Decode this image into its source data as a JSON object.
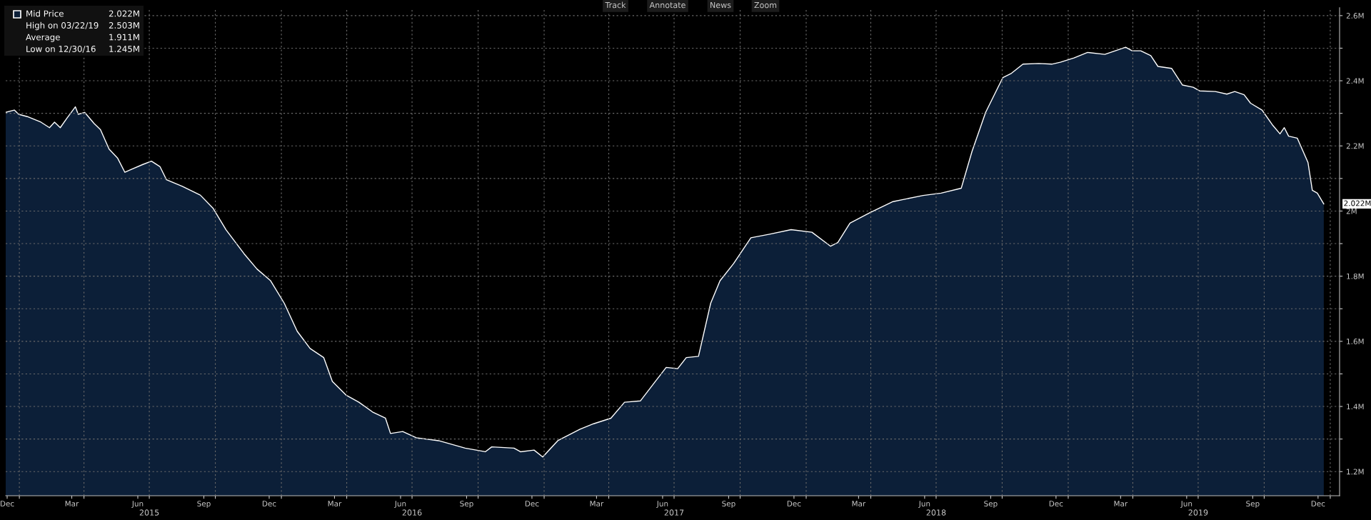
{
  "chart_data": {
    "type": "area",
    "x": [
      "2014-12-13",
      "2014-12-25",
      "2014-12-31",
      "2015-01-12",
      "2015-01-31",
      "2015-02-12",
      "2015-02-19",
      "2015-02-27",
      "2015-03-08",
      "2015-03-20",
      "2015-03-24",
      "2015-04-02",
      "2015-04-15",
      "2015-04-24",
      "2015-05-06",
      "2015-05-18",
      "2015-05-28",
      "2015-06-06",
      "2015-06-22",
      "2015-07-04",
      "2015-07-16",
      "2015-07-25",
      "2015-08-16",
      "2015-09-10",
      "2015-09-28",
      "2015-10-16",
      "2015-11-10",
      "2015-11-28",
      "2015-12-17",
      "2016-01-05",
      "2016-01-23",
      "2016-02-10",
      "2016-02-29",
      "2016-03-12",
      "2016-03-31",
      "2016-04-18",
      "2016-05-07",
      "2016-05-25",
      "2016-06-01",
      "2016-06-18",
      "2016-07-07",
      "2016-08-07",
      "2016-09-13",
      "2016-10-11",
      "2016-10-20",
      "2016-11-20",
      "2016-11-29",
      "2016-12-18",
      "2016-12-30",
      "2017-01-20",
      "2017-02-20",
      "2017-03-11",
      "2017-04-04",
      "2017-04-23",
      "2017-05-15",
      "2017-06-05",
      "2017-06-20",
      "2017-07-06",
      "2017-07-18",
      "2017-08-04",
      "2017-08-21",
      "2017-09-03",
      "2017-09-22",
      "2017-10-16",
      "2017-11-11",
      "2017-12-11",
      "2018-01-09",
      "2018-02-04",
      "2018-02-14",
      "2018-03-03",
      "2018-03-31",
      "2018-05-02",
      "2018-06-13",
      "2018-07-08",
      "2018-08-05",
      "2018-08-20",
      "2018-09-08",
      "2018-09-23",
      "2018-10-02",
      "2018-10-14",
      "2018-10-30",
      "2018-11-21",
      "2018-12-09",
      "2018-12-21",
      "2019-01-09",
      "2019-01-28",
      "2019-02-21",
      "2019-03-22",
      "2019-03-31",
      "2019-04-12",
      "2019-04-26",
      "2019-05-06",
      "2019-05-25",
      "2019-06-09",
      "2019-06-24",
      "2019-07-03",
      "2019-07-25",
      "2019-08-10",
      "2019-08-21",
      "2019-09-03",
      "2019-09-12",
      "2019-09-28",
      "2019-10-13",
      "2019-10-23",
      "2019-10-29",
      "2019-11-04",
      "2019-11-16",
      "2019-12-01",
      "2019-12-07",
      "2019-12-14",
      "2019-12-23"
    ],
    "series": [
      {
        "name": "Mid Price",
        "color": "#0c1f38",
        "values": [
          2.303,
          2.31,
          2.297,
          2.29,
          2.273,
          2.256,
          2.273,
          2.256,
          2.284,
          2.32,
          2.297,
          2.303,
          2.269,
          2.25,
          2.19,
          2.162,
          2.119,
          2.128,
          2.143,
          2.153,
          2.136,
          2.096,
          2.076,
          2.049,
          2.008,
          1.942,
          1.869,
          1.822,
          1.786,
          1.717,
          1.631,
          1.578,
          1.55,
          1.477,
          1.435,
          1.413,
          1.383,
          1.364,
          1.317,
          1.323,
          1.304,
          1.295,
          1.272,
          1.261,
          1.276,
          1.272,
          1.261,
          1.266,
          1.245,
          1.295,
          1.33,
          1.347,
          1.364,
          1.413,
          1.417,
          1.477,
          1.52,
          1.516,
          1.55,
          1.554,
          1.717,
          1.786,
          1.839,
          1.918,
          1.929,
          1.943,
          1.935,
          1.892,
          1.903,
          1.963,
          1.995,
          2.029,
          2.048,
          2.055,
          2.07,
          2.183,
          2.303,
          2.37,
          2.41,
          2.423,
          2.451,
          2.453,
          2.451,
          2.457,
          2.47,
          2.487,
          2.481,
          2.503,
          2.492,
          2.492,
          2.477,
          2.444,
          2.438,
          2.387,
          2.38,
          2.369,
          2.367,
          2.359,
          2.367,
          2.357,
          2.331,
          2.31,
          2.263,
          2.237,
          2.256,
          2.23,
          2.224,
          2.149,
          2.064,
          2.055,
          2.022
        ]
      }
    ],
    "xlim": [
      "2014-12-13",
      "2020-01-14"
    ],
    "xticks": [
      {
        "value": "2014-12-15",
        "label": "Dec"
      },
      {
        "value": "2015-03-15",
        "label": "Mar"
      },
      {
        "value": "2015-06-15",
        "label": "Jun"
      },
      {
        "value": "2015-09-15",
        "label": "Sep"
      },
      {
        "value": "2015-12-15",
        "label": "Dec"
      },
      {
        "value": "2016-03-15",
        "label": "Mar"
      },
      {
        "value": "2016-06-15",
        "label": "Jun"
      },
      {
        "value": "2016-09-15",
        "label": "Sep"
      },
      {
        "value": "2016-12-15",
        "label": "Dec"
      },
      {
        "value": "2017-03-15",
        "label": "Mar"
      },
      {
        "value": "2017-06-15",
        "label": "Jun"
      },
      {
        "value": "2017-09-15",
        "label": "Sep"
      },
      {
        "value": "2017-12-15",
        "label": "Dec"
      },
      {
        "value": "2018-03-15",
        "label": "Mar"
      },
      {
        "value": "2018-06-15",
        "label": "Jun"
      },
      {
        "value": "2018-09-15",
        "label": "Sep"
      },
      {
        "value": "2018-12-15",
        "label": "Dec"
      },
      {
        "value": "2019-03-15",
        "label": "Mar"
      },
      {
        "value": "2019-06-15",
        "label": "Jun"
      },
      {
        "value": "2019-09-15",
        "label": "Sep"
      },
      {
        "value": "2019-12-15",
        "label": "Dec"
      },
      {
        "value": "2015-01-01",
        "label": null
      },
      {
        "value": "2015-04-01",
        "label": null
      },
      {
        "value": "2015-07-01",
        "label": null
      },
      {
        "value": "2015-10-01",
        "label": null
      },
      {
        "value": "2016-01-01",
        "label": null
      },
      {
        "value": "2016-04-01",
        "label": null
      },
      {
        "value": "2016-07-01",
        "label": null
      },
      {
        "value": "2016-10-01",
        "label": null
      },
      {
        "value": "2017-01-01",
        "label": null
      },
      {
        "value": "2017-04-01",
        "label": null
      },
      {
        "value": "2017-07-01",
        "label": null
      },
      {
        "value": "2017-10-01",
        "label": null
      },
      {
        "value": "2018-01-01",
        "label": null
      },
      {
        "value": "2018-04-01",
        "label": null
      },
      {
        "value": "2018-07-01",
        "label": null
      },
      {
        "value": "2018-10-01",
        "label": null
      },
      {
        "value": "2019-01-01",
        "label": null
      },
      {
        "value": "2019-04-01",
        "label": null
      },
      {
        "value": "2019-07-01",
        "label": null
      },
      {
        "value": "2019-10-01",
        "label": null
      },
      {
        "value": "2020-01-01",
        "label": null
      }
    ],
    "x2lim": [
      "2014-12-13",
      "2020-01-14"
    ],
    "x2ticks": [
      {
        "value": "2015-07-01",
        "label": "2015"
      },
      {
        "value": "2016-07-01",
        "label": "2016"
      },
      {
        "value": "2017-07-01",
        "label": "2017"
      },
      {
        "value": "2018-07-01",
        "label": "2018"
      },
      {
        "value": "2019-07-01",
        "label": "2019"
      }
    ],
    "ylim": [
      1.126,
      2.624
    ],
    "yticks": [
      {
        "value": 1.2,
        "label": "1.2M"
      },
      {
        "value": 1.3,
        "label": null
      },
      {
        "value": 1.4,
        "label": "1.4M"
      },
      {
        "value": 1.5,
        "label": null
      },
      {
        "value": 1.6,
        "label": "1.6M"
      },
      {
        "value": 1.7,
        "label": null
      },
      {
        "value": 1.8,
        "label": "1.8M"
      },
      {
        "value": 1.9,
        "label": null
      },
      {
        "value": 2.0,
        "label": "2M"
      },
      {
        "value": 2.1,
        "label": null
      },
      {
        "value": 2.2,
        "label": "2.2M"
      },
      {
        "value": 2.3,
        "label": null
      },
      {
        "value": 2.4,
        "label": "2.4M"
      },
      {
        "value": 2.5,
        "label": null
      },
      {
        "value": 2.6,
        "label": "2.6M"
      }
    ],
    "grid": true,
    "legend": "top left",
    "annotations": [
      "2.022M",
      "High on 03/22/19",
      "2.503M",
      "Average",
      "1.911M",
      "Low on 12/30/16",
      "1.245M",
      "Track",
      "Annotate",
      "News",
      "Zoom",
      {
        "text": "2.022M",
        "x": "2019-12-23",
        "y": 2.022
      }
    ]
  }
}
